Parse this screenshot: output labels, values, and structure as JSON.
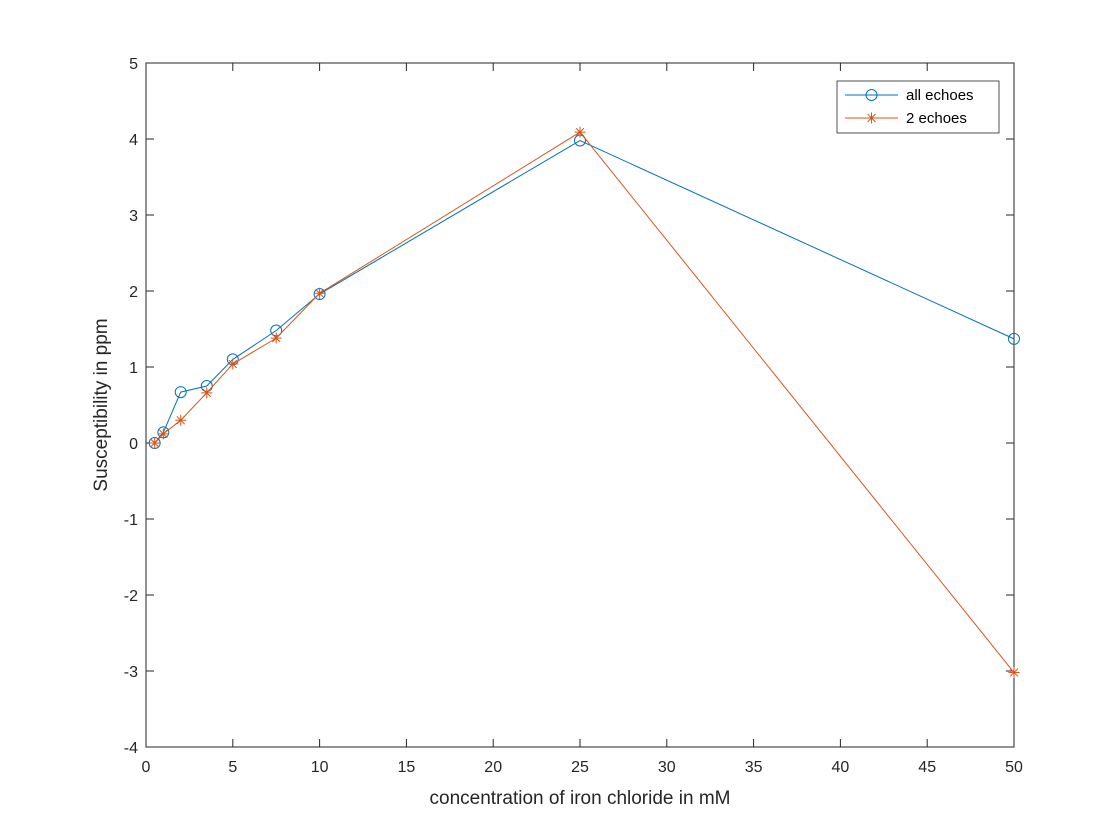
{
  "chart_data": {
    "type": "line",
    "title": "",
    "xlabel": "concentration of iron chloride in mM",
    "ylabel": "Susceptibility in ppm",
    "xlim": [
      0,
      50
    ],
    "ylim": [
      -4,
      5
    ],
    "xticks": [
      0,
      5,
      10,
      15,
      20,
      25,
      30,
      35,
      40,
      45,
      50
    ],
    "yticks": [
      -4,
      -3,
      -2,
      -1,
      0,
      1,
      2,
      3,
      4,
      5
    ],
    "grid": false,
    "legend_position": "top-right",
    "x": [
      0.5,
      1,
      2,
      3.5,
      5,
      7.5,
      10,
      25,
      50
    ],
    "series": [
      {
        "name": "all echoes",
        "color": "#0072BD",
        "marker": "circle",
        "values": [
          0.0,
          0.14,
          0.67,
          0.75,
          1.1,
          1.48,
          1.96,
          3.98,
          1.37
        ]
      },
      {
        "name": "2 echoes",
        "color": "#D95319",
        "marker": "asterisk",
        "values": [
          0.0,
          0.12,
          0.3,
          0.66,
          1.04,
          1.38,
          1.97,
          4.09,
          -3.02
        ]
      }
    ]
  }
}
